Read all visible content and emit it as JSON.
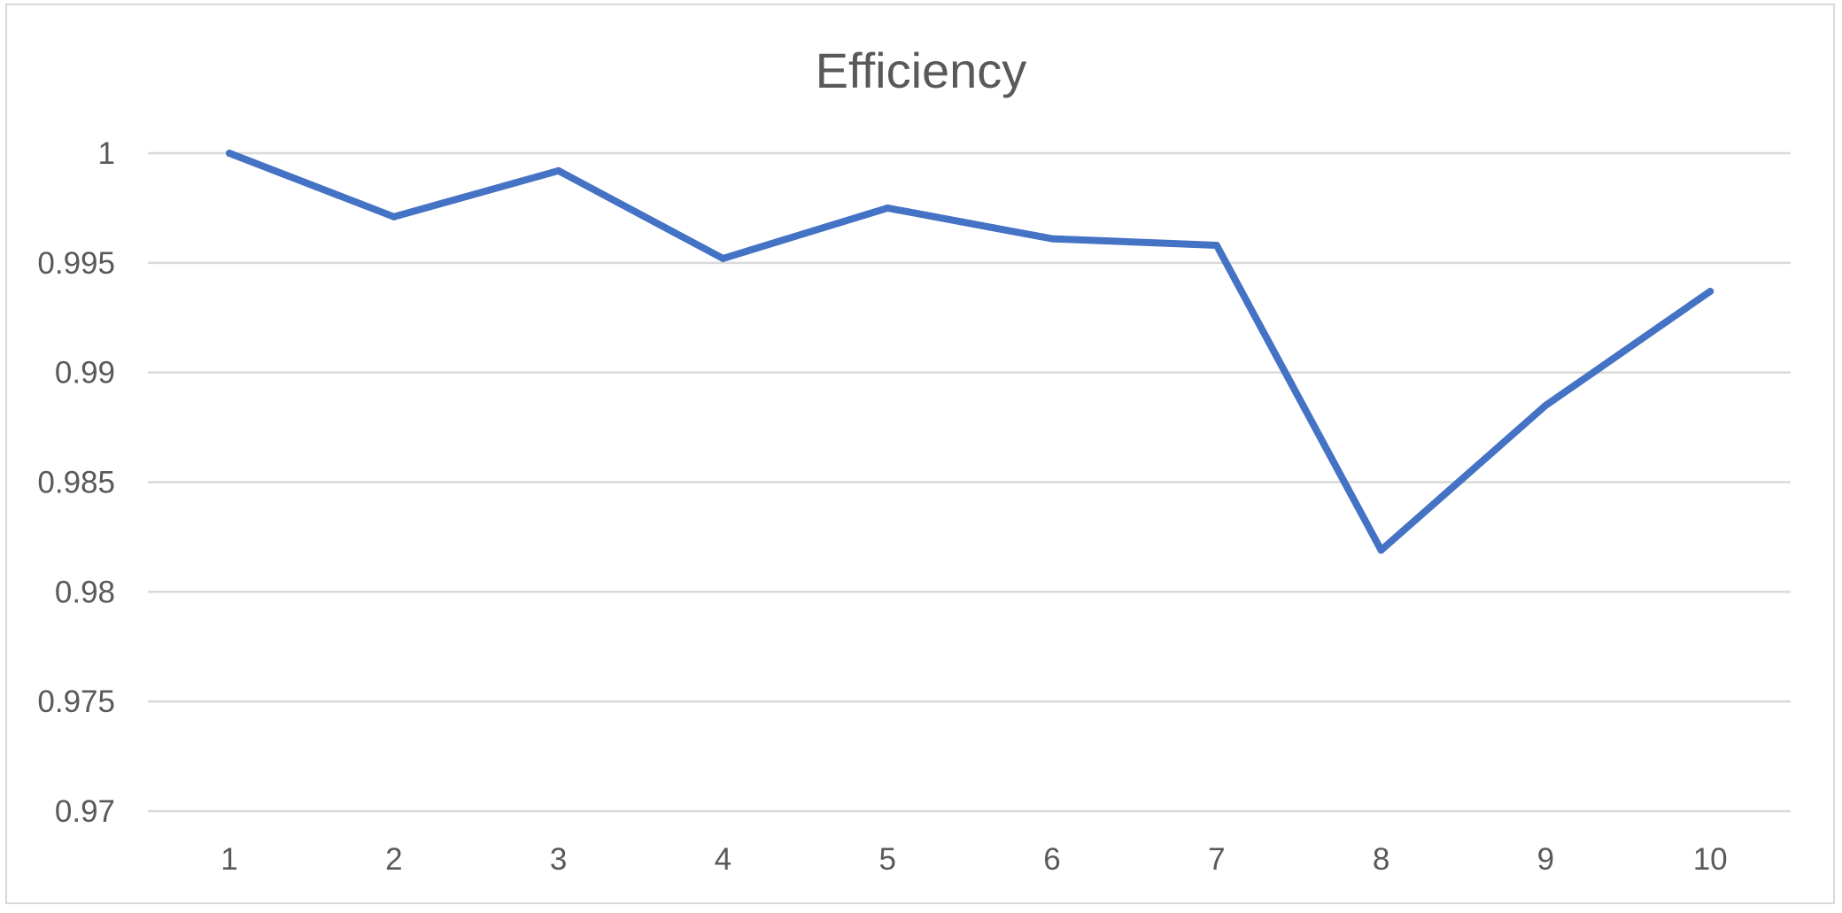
{
  "chart_data": {
    "type": "line",
    "title": "Efficiency",
    "xlabel": "",
    "ylabel": "",
    "categories": [
      "1",
      "2",
      "3",
      "4",
      "5",
      "6",
      "7",
      "8",
      "9",
      "10"
    ],
    "series": [
      {
        "color": "#4472C4",
        "values": [
          1.0,
          0.9971,
          0.9992,
          0.9952,
          0.9975,
          0.9961,
          0.9958,
          0.9819,
          0.9885,
          0.9937
        ]
      }
    ],
    "ylim": [
      0.97,
      1.0
    ],
    "yticks": [
      {
        "value": 1.0,
        "label": "1"
      },
      {
        "value": 0.995,
        "label": "0.995"
      },
      {
        "value": 0.99,
        "label": "0.99"
      },
      {
        "value": 0.985,
        "label": "0.985"
      },
      {
        "value": 0.98,
        "label": "0.98"
      },
      {
        "value": 0.975,
        "label": "0.975"
      },
      {
        "value": 0.97,
        "label": "0.97"
      }
    ],
    "grid": true,
    "legend": "none"
  }
}
